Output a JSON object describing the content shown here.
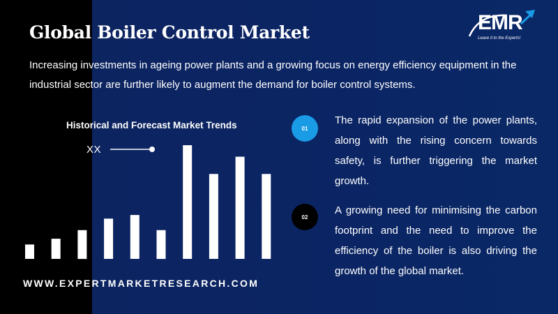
{
  "title": "Global Boiler Control Market",
  "logo": {
    "text": "EMR",
    "tagline": "Leave it to the Experts!"
  },
  "intro": "Increasing investments in ageing power plants and a growing focus on energy efficiency equipment in the industrial sector are further likely to augment the demand for boiler control systems.",
  "chart_data": {
    "type": "bar",
    "title": "Historical and Forecast Market Trends",
    "legend_label": "XX",
    "values": [
      1,
      1.4,
      2,
      2.8,
      3.05,
      2,
      7.9,
      5.9,
      7.1,
      5.9
    ],
    "ylim": [
      0,
      8
    ],
    "bar_color": "#ffffff"
  },
  "points": [
    {
      "num": "01",
      "text": "The rapid expansion of the power plants, along with the rising concern towards safety, is further triggering the market growth.",
      "color": "#1a9be6"
    },
    {
      "num": "02",
      "text": "A growing need for minimising the carbon footprint and the need to improve the efficiency of the boiler is also driving the growth of the global market.",
      "color": "#000000"
    }
  ],
  "website": "WWW.EXPERTMARKETRESEARCH.COM"
}
